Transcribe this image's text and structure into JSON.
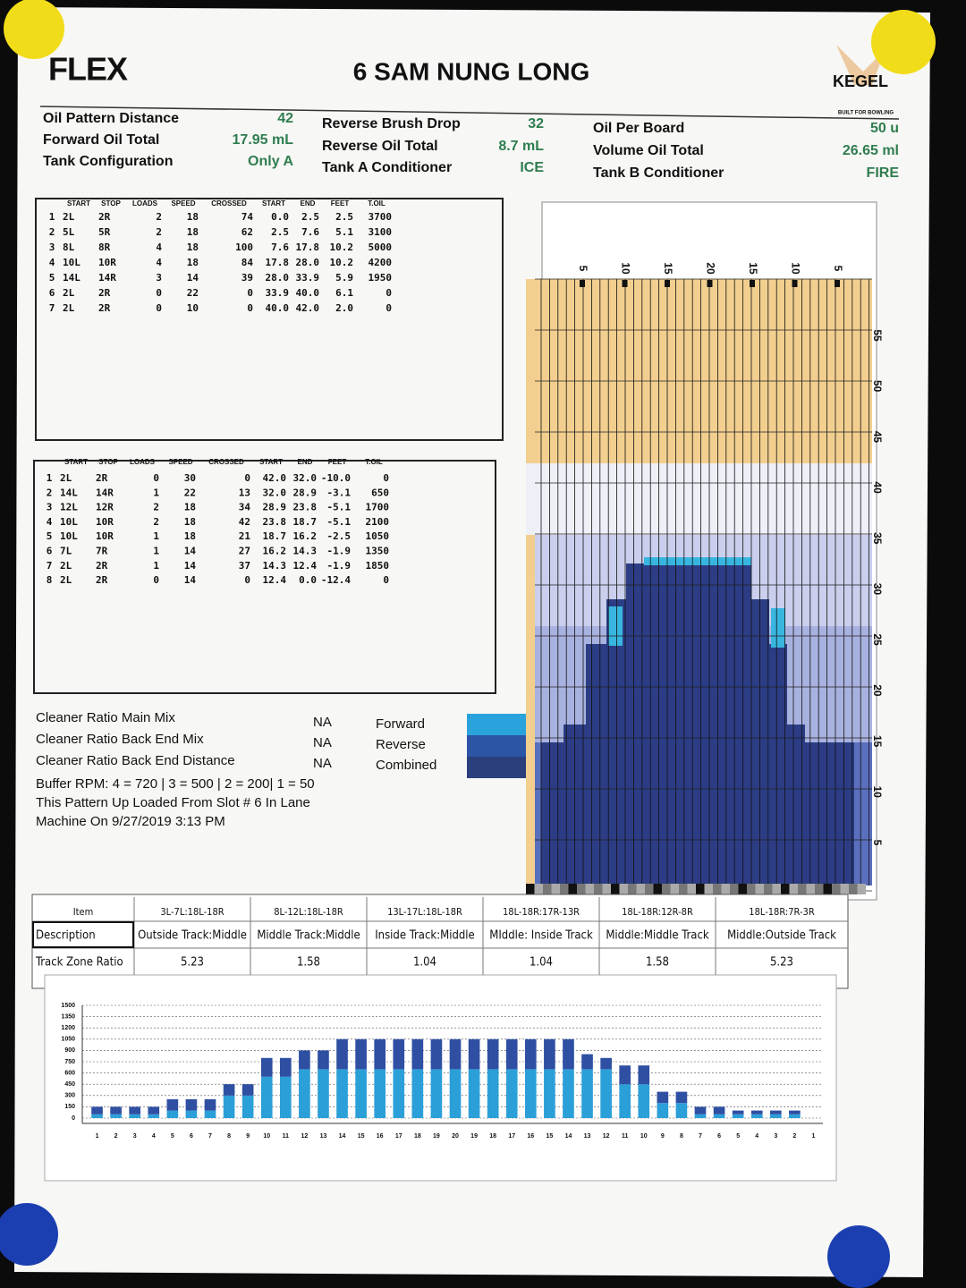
{
  "header": {
    "logo": "FLEX",
    "title": "6 SAM NUNG LONG",
    "brand": "KEGEL",
    "tagline": "BUILT FOR BOWLING"
  },
  "summary": [
    {
      "label": "Oil Pattern Distance",
      "value": "42"
    },
    {
      "label": "Forward Oil Total",
      "value": "17.95 mL"
    },
    {
      "label": "Tank Configuration",
      "value": "Only A"
    },
    {
      "label": "Reverse Brush Drop",
      "value": "32"
    },
    {
      "label": "Reverse Oil Total",
      "value": "8.7 mL"
    },
    {
      "label": "Tank A Conditioner",
      "value": "ICE"
    },
    {
      "label": "Oil Per Board",
      "value": "50 u"
    },
    {
      "label": "Volume Oil Total",
      "value": "26.65 ml"
    },
    {
      "label": "Tank B Conditioner",
      "value": "FIRE"
    }
  ],
  "forward_table": {
    "columns": [
      "START",
      "STOP",
      "LOADS",
      "SPEED",
      "CROSSED",
      "START",
      "END",
      "FEET",
      "T.OIL"
    ],
    "rows": [
      [
        "1",
        "2L",
        "2R",
        "2",
        "18",
        "74",
        "0.0",
        "2.5",
        "2.5",
        "3700"
      ],
      [
        "2",
        "5L",
        "5R",
        "2",
        "18",
        "62",
        "2.5",
        "7.6",
        "5.1",
        "3100"
      ],
      [
        "3",
        "8L",
        "8R",
        "4",
        "18",
        "100",
        "7.6",
        "17.8",
        "10.2",
        "5000"
      ],
      [
        "4",
        "10L",
        "10R",
        "4",
        "18",
        "84",
        "17.8",
        "28.0",
        "10.2",
        "4200"
      ],
      [
        "5",
        "14L",
        "14R",
        "3",
        "14",
        "39",
        "28.0",
        "33.9",
        "5.9",
        "1950"
      ],
      [
        "6",
        "2L",
        "2R",
        "0",
        "22",
        "0",
        "33.9",
        "40.0",
        "6.1",
        "0"
      ],
      [
        "7",
        "2L",
        "2R",
        "0",
        "10",
        "0",
        "40.0",
        "42.0",
        "2.0",
        "0"
      ]
    ]
  },
  "reverse_table": {
    "columns": [
      "START",
      "STOP",
      "LOADS",
      "SPEED",
      "CROSSED",
      "START",
      "END",
      "FEET",
      "T.OIL"
    ],
    "rows": [
      [
        "1",
        "2L",
        "2R",
        "0",
        "30",
        "0",
        "42.0",
        "32.0",
        "-10.0",
        "0"
      ],
      [
        "2",
        "14L",
        "14R",
        "1",
        "22",
        "13",
        "32.0",
        "28.9",
        "-3.1",
        "650"
      ],
      [
        "3",
        "12L",
        "12R",
        "2",
        "18",
        "34",
        "28.9",
        "23.8",
        "-5.1",
        "1700"
      ],
      [
        "4",
        "10L",
        "10R",
        "2",
        "18",
        "42",
        "23.8",
        "18.7",
        "-5.1",
        "2100"
      ],
      [
        "5",
        "10L",
        "10R",
        "1",
        "18",
        "21",
        "18.7",
        "16.2",
        "-2.5",
        "1050"
      ],
      [
        "6",
        "7L",
        "7R",
        "1",
        "14",
        "27",
        "16.2",
        "14.3",
        "-1.9",
        "1350"
      ],
      [
        "7",
        "2L",
        "2R",
        "1",
        "14",
        "37",
        "14.3",
        "12.4",
        "-1.9",
        "1850"
      ],
      [
        "8",
        "2L",
        "2R",
        "0",
        "14",
        "0",
        "12.4",
        "0.0",
        "-12.4",
        "0"
      ]
    ]
  },
  "cleaner": [
    {
      "label": "Cleaner Ratio Main Mix",
      "value": "NA"
    },
    {
      "label": "Cleaner Ratio Back End Mix",
      "value": "NA"
    },
    {
      "label": "Cleaner Ratio Back End Distance",
      "value": "NA"
    }
  ],
  "notes": [
    "Buffer RPM: 4 = 720 | 3 = 500 | 2 = 200| 1 = 50",
    "This Pattern Up Loaded From Slot # 6 In Lane",
    "Machine On 9/27/2019 3:13 PM"
  ],
  "legend": [
    "Forward",
    "Reverse",
    "Combined"
  ],
  "lane": {
    "board_labels": [
      "5",
      "10",
      "15",
      "20",
      "15",
      "10",
      "5"
    ],
    "distance_labels": [
      "55",
      "50",
      "45",
      "40",
      "35",
      "30",
      "25",
      "20",
      "15",
      "10",
      "5"
    ]
  },
  "track_table": {
    "header": [
      "Item",
      "3L-7L:18L-18R",
      "8L-12L:18L-18R",
      "13L-17L:18L-18R",
      "18L-18R:17R-13R",
      "18L-18R:12R-8R",
      "18L-18R:7R-3R"
    ],
    "rows": [
      [
        "Description",
        "Outside Track:Middle",
        "Middle Track:Middle",
        "Inside Track:Middle",
        "MIddle: Inside Track",
        "Middle:Middle Track",
        "Middle:Outside Track"
      ],
      [
        "Track Zone Ratio",
        "5.23",
        "1.58",
        "1.04",
        "1.04",
        "1.58",
        "5.23"
      ]
    ]
  },
  "chart_data": {
    "type": "bar",
    "stacked": true,
    "categories": [
      "1",
      "2",
      "3",
      "4",
      "5",
      "6",
      "7",
      "8",
      "9",
      "10",
      "11",
      "12",
      "13",
      "14",
      "15",
      "16",
      "17",
      "18",
      "19",
      "20",
      "19",
      "18",
      "17",
      "16",
      "15",
      "14",
      "13",
      "12",
      "11",
      "10",
      "9",
      "8",
      "7",
      "6",
      "5",
      "4",
      "3",
      "2",
      "1"
    ],
    "series": [
      {
        "color": "#2b9fd8",
        "values": [
          50,
          50,
          50,
          50,
          100,
          100,
          100,
          300,
          300,
          550,
          550,
          650,
          650,
          650,
          650,
          650,
          650,
          650,
          650,
          650,
          650,
          650,
          650,
          650,
          650,
          650,
          650,
          650,
          450,
          450,
          200,
          200,
          50,
          50,
          50,
          50,
          50,
          50,
          0
        ]
      },
      {
        "color": "#2f4fa3",
        "values": [
          100,
          100,
          100,
          100,
          150,
          150,
          150,
          150,
          150,
          250,
          250,
          250,
          250,
          400,
          400,
          400,
          400,
          400,
          400,
          400,
          400,
          400,
          400,
          400,
          400,
          400,
          200,
          150,
          250,
          250,
          150,
          150,
          100,
          100,
          50,
          50,
          50,
          50,
          0
        ]
      }
    ],
    "ylim": [
      0,
      1500
    ],
    "yticks": [
      0,
      150,
      300,
      450,
      600,
      750,
      900,
      1050,
      1200,
      1350,
      1500
    ],
    "grid": true
  }
}
